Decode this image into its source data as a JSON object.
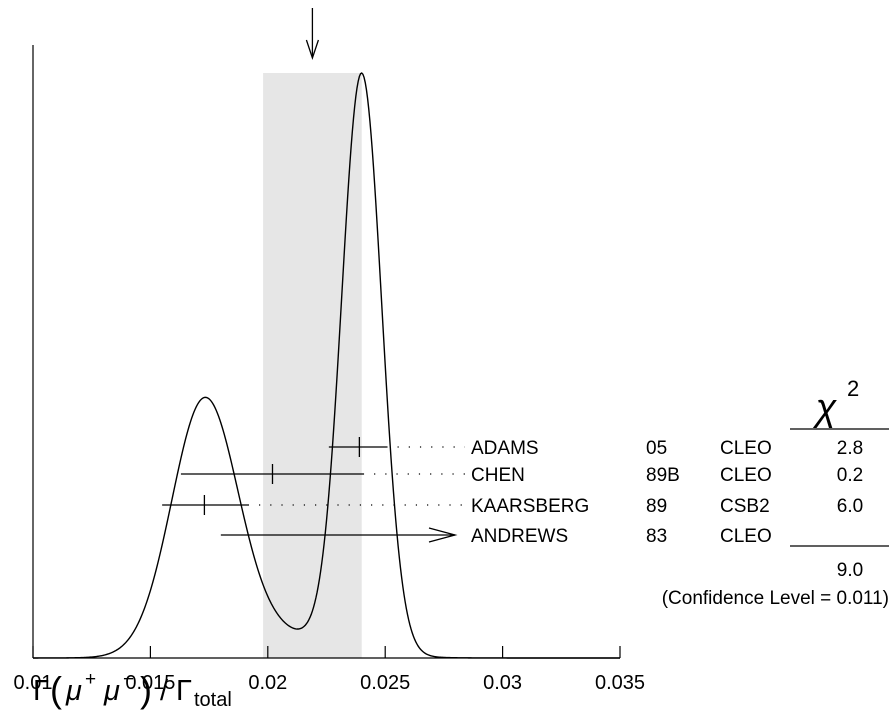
{
  "chart_data": {
    "type": "ideogram",
    "xlim": [
      0.01,
      0.035
    ],
    "x_ticks": [
      "0.01",
      "0.015",
      "0.02",
      "0.025",
      "0.03",
      "0.035"
    ],
    "x_tick_values": [
      0.01,
      0.015,
      0.02,
      0.025,
      0.03,
      0.035
    ],
    "xlabel": {
      "gamma": "Γ",
      "open_paren": "(",
      "mu": "μ",
      "plus": "+",
      "minus": "−",
      "close_paren": ")",
      "slash": "/",
      "denominator": "Γ",
      "denominator_sub": "total"
    },
    "average": 0.0219,
    "band": [
      0.0198,
      0.024
    ],
    "chi2_header": {
      "chi": "χ",
      "exp": "2"
    },
    "measurements": [
      {
        "author": "ADAMS",
        "year": "05",
        "experiment": "CLEO",
        "chi2": "2.8",
        "value": 0.0239,
        "low": 0.0226,
        "high": 0.0251,
        "limit": false
      },
      {
        "author": "CHEN",
        "year": "89B",
        "experiment": "CLEO",
        "chi2": "0.2",
        "value": 0.0202,
        "low": 0.0163,
        "high": 0.0241,
        "limit": false
      },
      {
        "author": "KAARSBERG",
        "year": "89",
        "experiment": "CSB2",
        "chi2": "6.0",
        "value": 0.0173,
        "low": 0.0155,
        "high": 0.0192,
        "limit": false
      },
      {
        "author": "ANDREWS",
        "year": "83",
        "experiment": "CLEO",
        "chi2": "",
        "value": 0.018,
        "low": 0.018,
        "high": 0.0241,
        "limit": true
      }
    ],
    "chi2_total": "9.0",
    "confidence_level": "(Confidence Level = 0.011)",
    "curve_components": [
      {
        "mean": 0.024,
        "sigma": 0.00085,
        "amp": 1.0
      },
      {
        "mean": 0.0173,
        "sigma": 0.0014,
        "amp": 0.43
      },
      {
        "mean": 0.0202,
        "sigma": 0.0026,
        "amp": 0.04
      }
    ]
  }
}
